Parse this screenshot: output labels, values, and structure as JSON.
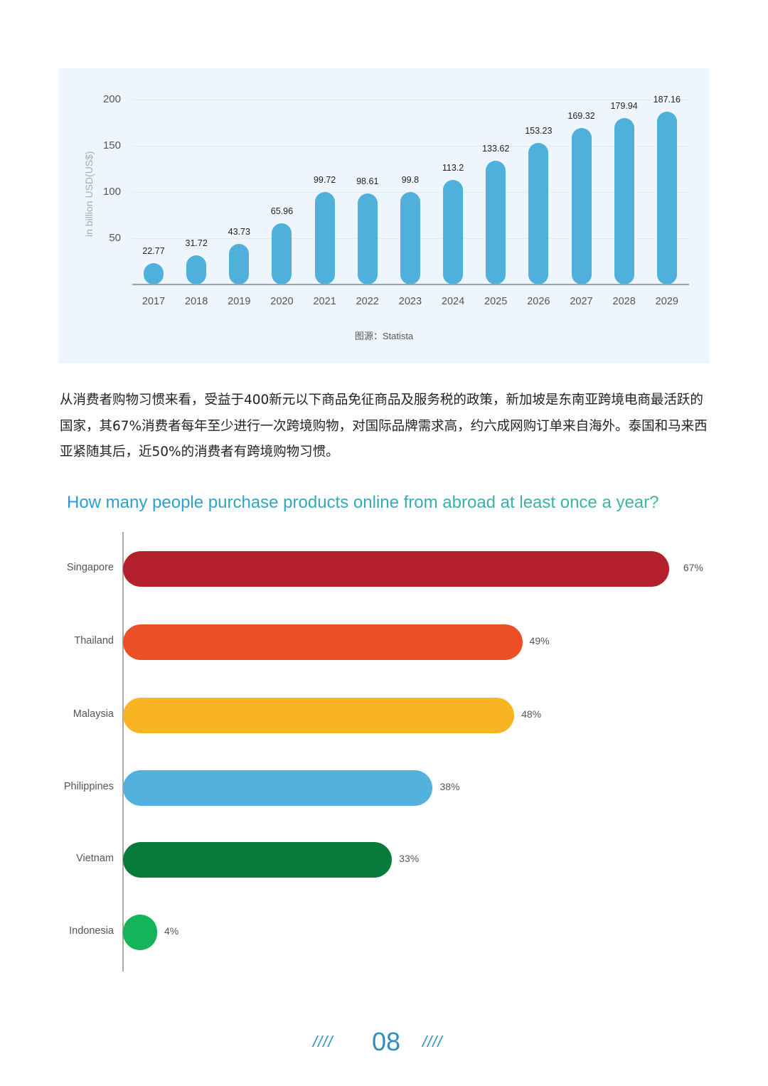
{
  "chart_data": [
    {
      "type": "bar",
      "orientation": "vertical",
      "title": "",
      "xlabel": "",
      "ylabel": "in billion USD(US$)",
      "ylim": [
        0,
        200
      ],
      "yticks": [
        50,
        100,
        150,
        200
      ],
      "grid": true,
      "categories": [
        "2017",
        "2018",
        "2019",
        "2020",
        "2021",
        "2022",
        "2023",
        "2024",
        "2025",
        "2026",
        "2027",
        "2028",
        "2029"
      ],
      "values": [
        22.77,
        31.72,
        43.73,
        65.96,
        99.72,
        98.61,
        99.8,
        113.2,
        133.62,
        153.23,
        169.32,
        179.94,
        187.16
      ],
      "value_labels": [
        "22.77",
        "31.72",
        "43.73",
        "65.96",
        "99.72",
        "98.61",
        "99.8",
        "113.2",
        "133.62",
        "153.23",
        "169.32",
        "179.94",
        "187.16"
      ],
      "bar_color": "#4fb0dc",
      "source": "图源：Statista"
    },
    {
      "type": "bar",
      "orientation": "horizontal",
      "title": "How many people purchase products online from abroad at least once a year?",
      "xlabel": "",
      "ylabel": "",
      "xlim": [
        0,
        67
      ],
      "grid": false,
      "categories": [
        "Singapore",
        "Thailand",
        "Malaysia",
        "Philippines",
        "Vietnam",
        "Indonesia"
      ],
      "values": [
        67,
        49,
        48,
        38,
        33,
        4
      ],
      "value_labels": [
        "67%",
        "49%",
        "48%",
        "38%",
        "33%",
        "4%"
      ],
      "colors": [
        "#b31f2a",
        "#ec4f26",
        "#f9b423",
        "#53b2dd",
        "#087b3c",
        "#14b45a"
      ]
    }
  ],
  "chart1": {
    "ylabel": "in billion USD(US$)",
    "yticks": [
      "200",
      "150",
      "100",
      "50"
    ],
    "source": "图源：Statista"
  },
  "paragraph": "从消费者购物习惯来看，受益于400新元以下商品免征商品及服务税的政策，新加坡是东南亚跨境电商最活跃的国家，其67%消费者每年至少进行一次跨境购物，对国际品牌需求高，约六成网购订单来自海外。泰国和马来西亚紧随其后，近50%的消费者有跨境购物习惯。",
  "chart2": {
    "title": "How many people purchase products online from abroad at least once a year?"
  },
  "footer": {
    "page_number": "08",
    "left_decoration": "////",
    "right_decoration": "////"
  }
}
